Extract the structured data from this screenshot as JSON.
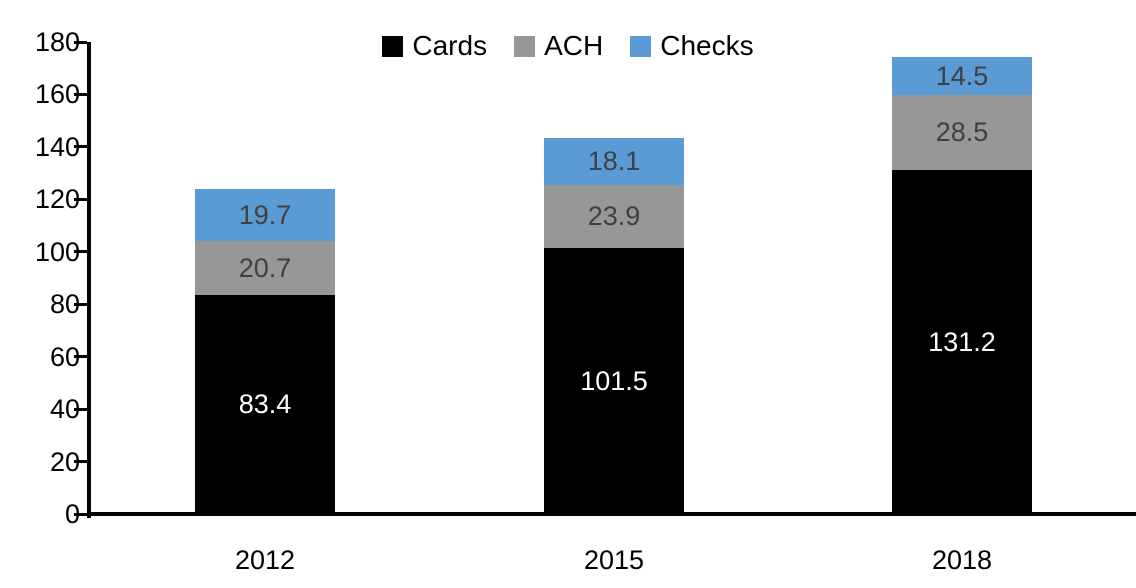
{
  "chart_data": {
    "type": "bar",
    "stacked": true,
    "title": "",
    "categories": [
      "2012",
      "2015",
      "2018"
    ],
    "series": [
      {
        "name": "Cards",
        "color": "#000000",
        "label_color": "#ffffff",
        "values": [
          83.4,
          101.5,
          131.2
        ]
      },
      {
        "name": "ACH",
        "color": "#979797",
        "label_color": "#404040",
        "values": [
          20.7,
          23.9,
          28.5
        ]
      },
      {
        "name": "Checks",
        "color": "#5B9BD5",
        "label_color": "#404040",
        "values": [
          19.7,
          18.1,
          14.5
        ]
      }
    ],
    "xlabel": "",
    "ylabel": "",
    "ylim": [
      0,
      180
    ],
    "ytick_step": 20,
    "yticks": [
      0,
      20,
      40,
      60,
      80,
      100,
      120,
      140,
      160,
      180
    ],
    "grid": false,
    "legend_position": "top-center",
    "axis_color": "#000000",
    "text_color": "#000000"
  }
}
